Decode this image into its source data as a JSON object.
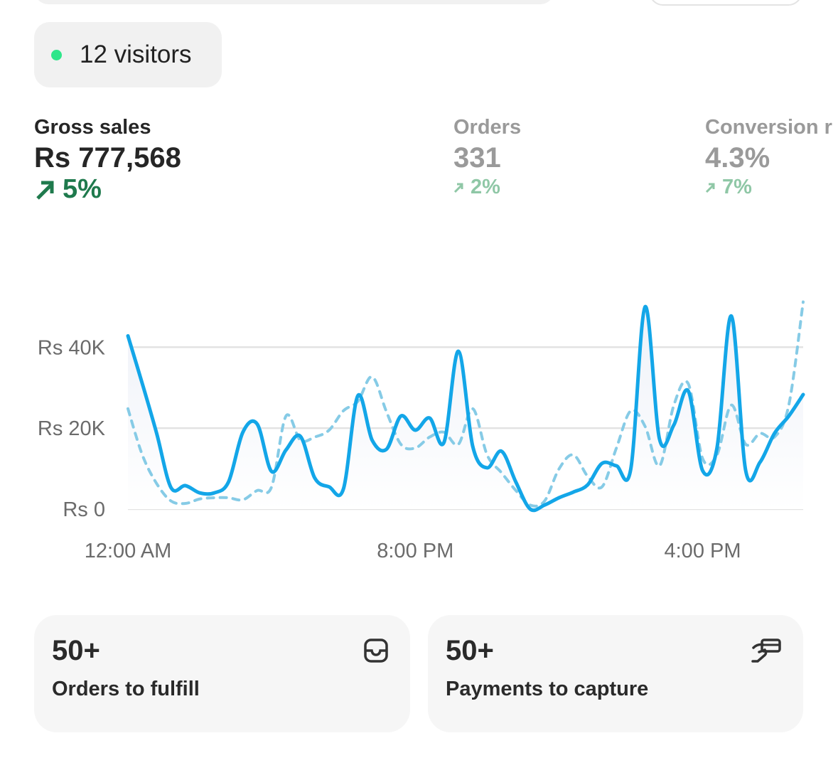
{
  "visitors": {
    "label": "12 visitors",
    "dot_color": "#2ee68a"
  },
  "metrics": [
    {
      "label": "Gross sales",
      "value": "Rs 777,568",
      "change": "5%",
      "trend": "up"
    },
    {
      "label": "Orders",
      "value": "331",
      "change": "2%",
      "trend": "up"
    },
    {
      "label": "Conversion r",
      "value": "4.3%",
      "change": "7%",
      "trend": "up"
    }
  ],
  "chart_data": {
    "type": "line",
    "y_ticks": [
      "Rs 0",
      "Rs 20K",
      "Rs 40K"
    ],
    "y_tick_values": [
      0,
      20,
      40
    ],
    "x_ticks": [
      "12:00 AM",
      "8:00 PM",
      "4:00 PM"
    ],
    "x_tick_index": [
      0,
      20,
      40
    ],
    "ylim": [
      0,
      52
    ],
    "y_unit": "Rs thousands",
    "grid": true,
    "series": [
      {
        "style": "solid",
        "color": "#13a6e8",
        "values": [
          42.8,
          31,
          18.7,
          5.3,
          5.8,
          4,
          4,
          6.7,
          19,
          21,
          9.3,
          14.6,
          18,
          7.7,
          5.5,
          5,
          28,
          17,
          14.8,
          23,
          19.5,
          22.5,
          16.5,
          39,
          15.5,
          10.2,
          14.3,
          6.7,
          0,
          1,
          2.8,
          4.2,
          6,
          11.3,
          10.7,
          9.9,
          50,
          17.3,
          20.8,
          29.2,
          9.5,
          15.1,
          47.7,
          9.5,
          11.6,
          18.7,
          23,
          28.3
        ]
      },
      {
        "style": "dashed",
        "color": "#86cbe6",
        "values": [
          24.8,
          13.4,
          6.3,
          2,
          1.4,
          2.5,
          2.8,
          2.8,
          2.3,
          4.6,
          5.5,
          23,
          17,
          17.8,
          19.5,
          24.3,
          26.6,
          32.7,
          24,
          16,
          15.1,
          17.8,
          19,
          16,
          24.8,
          13.4,
          9,
          4.6,
          1,
          2,
          9.9,
          13.4,
          8.1,
          5.5,
          15.1,
          24.3,
          20.4,
          10.7,
          25.7,
          31,
          12.5,
          13.4,
          25.7,
          16,
          18.7,
          17.8,
          25.7,
          51.2
        ]
      }
    ]
  },
  "cards": [
    {
      "count": "50+",
      "label": "Orders to fulfill",
      "icon": "inbox-icon"
    },
    {
      "count": "50+",
      "label": "Payments to capture",
      "icon": "hand-card-icon"
    }
  ]
}
